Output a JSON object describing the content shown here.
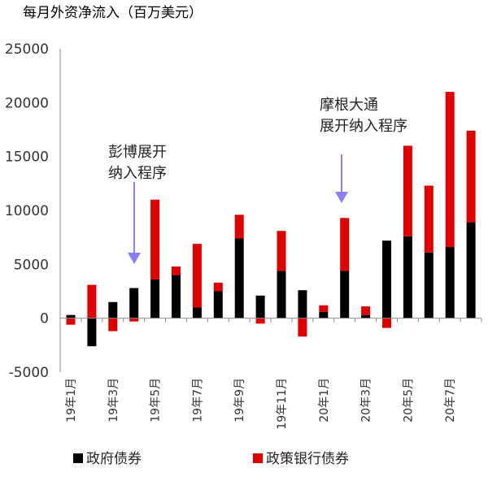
{
  "chart_data": {
    "type": "bar",
    "stacked": true,
    "title": "每月外资净流入（百万美元）",
    "categories": [
      "19年1月",
      "19年2月",
      "19年3月",
      "19年4月",
      "19年5月",
      "19年6月",
      "19年7月",
      "19年8月",
      "19年9月",
      "19年10月",
      "19年11月",
      "19年12月",
      "20年1月",
      "20年2月",
      "20年3月",
      "20年4月",
      "20年5月",
      "20年6月",
      "20年7月",
      "20年8月"
    ],
    "tick_labels": [
      "19年1月",
      "",
      "19年3月",
      "",
      "19年5月",
      "",
      "19年7月",
      "",
      "19年9月",
      "",
      "19年11月",
      "",
      "20年1月",
      "",
      "20年3月",
      "",
      "20年5月",
      "",
      "20年7月",
      ""
    ],
    "series": [
      {
        "name": "政府债券",
        "color": "#000000",
        "values": [
          300,
          -2600,
          1500,
          2800,
          3600,
          4000,
          1000,
          2500,
          7400,
          2100,
          4400,
          2600,
          600,
          4400,
          300,
          7200,
          7600,
          6100,
          6600,
          8900
        ]
      },
      {
        "name": "政策银行债券",
        "color": "#e00000",
        "values": [
          -600,
          3100,
          -1200,
          -300,
          7400,
          800,
          5900,
          800,
          2200,
          -500,
          3700,
          -1700,
          600,
          4900,
          800,
          -900,
          8400,
          6200,
          14400,
          8500
        ]
      }
    ],
    "ylim": [
      -5000,
      25000
    ],
    "yticks": [
      -5000,
      0,
      5000,
      10000,
      15000,
      20000,
      25000
    ],
    "xlabel": "",
    "ylabel": "",
    "legend": "bottom",
    "grid": false,
    "annotations": [
      {
        "lines": [
          "彭博展开",
          "纳入程序"
        ],
        "category": "19年4月"
      },
      {
        "lines": [
          "摩根大通",
          "展开纳入程序"
        ],
        "category": "20年2月"
      }
    ]
  }
}
